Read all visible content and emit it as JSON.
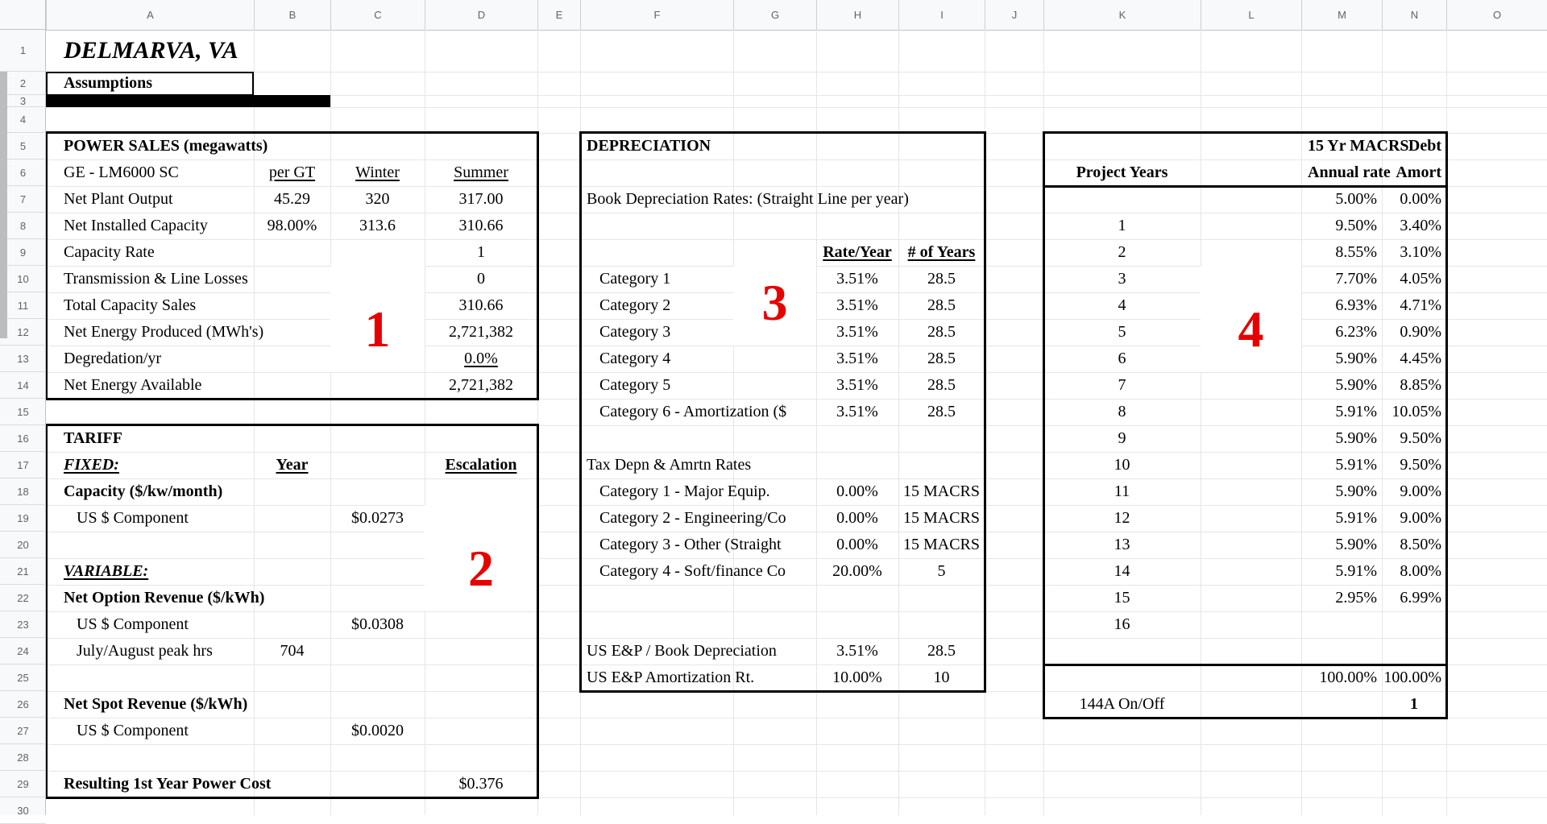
{
  "sheet": {
    "column_headers": [
      "A",
      "B",
      "C",
      "D",
      "E",
      "F",
      "G",
      "H",
      "I",
      "J",
      "K",
      "L",
      "M",
      "N",
      "O"
    ],
    "row_headers": [
      "1",
      "2",
      "3",
      "4",
      "5",
      "6",
      "7",
      "8",
      "9",
      "10",
      "11",
      "12",
      "13",
      "14",
      "15",
      "16",
      "17",
      "18",
      "19",
      "20",
      "21",
      "22",
      "23",
      "24",
      "25",
      "26",
      "27",
      "28",
      "29",
      "30"
    ]
  },
  "colors": {
    "red_label": "#e60000",
    "grid_line": "#e4e6e8",
    "header_bg": "#f8f9fa",
    "header_text": "#5f6368",
    "thick_border": "#000000"
  },
  "cells": [
    {
      "r": 1,
      "c": "A",
      "t": "DELMARVA, VA",
      "s": "bi",
      "fs": 30
    },
    {
      "r": 2,
      "c": "A",
      "t": "Assumptions",
      "s": "b"
    },
    {
      "r": 5,
      "c": "A",
      "t": "POWER SALES (megawatts)",
      "s": "b"
    },
    {
      "r": 6,
      "c": "A",
      "t": "GE - LM6000 SC"
    },
    {
      "r": 6,
      "c": "B",
      "t": "per GT",
      "s": "cu"
    },
    {
      "r": 6,
      "c": "C",
      "t": "Winter",
      "s": "cu"
    },
    {
      "r": 6,
      "c": "D",
      "t": "Summer",
      "s": "cu"
    },
    {
      "r": 7,
      "c": "A",
      "t": "Net Plant  Output"
    },
    {
      "r": 7,
      "c": "B",
      "t": "45.29",
      "s": "c"
    },
    {
      "r": 7,
      "c": "C",
      "t": "320",
      "s": "c"
    },
    {
      "r": 7,
      "c": "D",
      "t": "317.00",
      "s": "c"
    },
    {
      "r": 8,
      "c": "A",
      "t": "Net Installed Capacity"
    },
    {
      "r": 8,
      "c": "B",
      "t": "98.00%",
      "s": "c"
    },
    {
      "r": 8,
      "c": "C",
      "t": "313.6",
      "s": "c"
    },
    {
      "r": 8,
      "c": "D",
      "t": "310.66",
      "s": "c"
    },
    {
      "r": 9,
      "c": "A",
      "t": "Capacity Rate"
    },
    {
      "r": 9,
      "c": "D",
      "t": "1",
      "s": "c"
    },
    {
      "r": 10,
      "c": "A",
      "t": "Transmission & Line Losses"
    },
    {
      "r": 10,
      "c": "D",
      "t": "0",
      "s": "c"
    },
    {
      "r": 11,
      "c": "A",
      "t": "Total Capacity Sales"
    },
    {
      "r": 11,
      "c": "D",
      "t": "310.66",
      "s": "c"
    },
    {
      "r": 12,
      "c": "A",
      "t": "Net Energy Produced (MWh's)"
    },
    {
      "r": 12,
      "c": "D",
      "t": "2,721,382",
      "s": "c"
    },
    {
      "r": 13,
      "c": "A",
      "t": "Degredation/yr"
    },
    {
      "r": 13,
      "c": "D",
      "t": "0.0%",
      "s": "cu"
    },
    {
      "r": 14,
      "c": "A",
      "t": "Net Energy Available"
    },
    {
      "r": 14,
      "c": "D",
      "t": "2,721,382",
      "s": "c"
    },
    {
      "r": 16,
      "c": "A",
      "t": "TARIFF",
      "s": "b"
    },
    {
      "r": 17,
      "c": "A",
      "t": "FIXED:",
      "s": "biu"
    },
    {
      "r": 17,
      "c": "B",
      "t": "Year",
      "s": "cbu"
    },
    {
      "r": 17,
      "c": "D",
      "t": "Escalation",
      "s": "cbu"
    },
    {
      "r": 18,
      "c": "A",
      "t": "Capacity ($/kw/month)",
      "s": "b"
    },
    {
      "r": 19,
      "c": "A",
      "t": "US $ Component",
      "in": 1
    },
    {
      "r": 19,
      "c": "C",
      "t": "$0.0273",
      "s": "c"
    },
    {
      "r": 21,
      "c": "A",
      "t": "VARIABLE:",
      "s": "biu"
    },
    {
      "r": 22,
      "c": "A",
      "t": "Net Option Revenue ($/kWh)",
      "s": "b"
    },
    {
      "r": 23,
      "c": "A",
      "t": "US $ Component",
      "in": 1
    },
    {
      "r": 23,
      "c": "C",
      "t": "$0.0308",
      "s": "c"
    },
    {
      "r": 24,
      "c": "A",
      "t": "July/August peak hrs",
      "in": 1
    },
    {
      "r": 24,
      "c": "B",
      "t": "704",
      "s": "c"
    },
    {
      "r": 26,
      "c": "A",
      "t": "Net Spot Revenue ($/kWh)",
      "s": "b"
    },
    {
      "r": 27,
      "c": "A",
      "t": "US $ Component",
      "in": 1
    },
    {
      "r": 27,
      "c": "C",
      "t": "$0.0020",
      "s": "c"
    },
    {
      "r": 29,
      "c": "A",
      "t": "Resulting 1st Year Power Cost",
      "s": "b"
    },
    {
      "r": 29,
      "c": "D",
      "t": "$0.376",
      "s": "c"
    },
    {
      "r": 5,
      "c": "F",
      "t": "DEPRECIATION",
      "s": "b"
    },
    {
      "r": 7,
      "c": "F",
      "t": "Book Depreciation Rates: (Straight Line per year)"
    },
    {
      "r": 9,
      "c": "H",
      "t": "Rate/Year",
      "s": "cbu"
    },
    {
      "r": 9,
      "c": "I",
      "t": "# of Years",
      "s": "cbu"
    },
    {
      "r": 10,
      "c": "F",
      "t": "Category 1",
      "in": 1
    },
    {
      "r": 10,
      "c": "H",
      "t": "3.51%",
      "s": "c"
    },
    {
      "r": 10,
      "c": "I",
      "t": "28.5",
      "s": "c"
    },
    {
      "r": 11,
      "c": "F",
      "t": "Category 2",
      "in": 1
    },
    {
      "r": 11,
      "c": "H",
      "t": "3.51%",
      "s": "c"
    },
    {
      "r": 11,
      "c": "I",
      "t": "28.5",
      "s": "c"
    },
    {
      "r": 12,
      "c": "F",
      "t": "Category 3",
      "in": 1
    },
    {
      "r": 12,
      "c": "H",
      "t": "3.51%",
      "s": "c"
    },
    {
      "r": 12,
      "c": "I",
      "t": "28.5",
      "s": "c"
    },
    {
      "r": 13,
      "c": "F",
      "t": "Category 4",
      "in": 1
    },
    {
      "r": 13,
      "c": "H",
      "t": "3.51%",
      "s": "c"
    },
    {
      "r": 13,
      "c": "I",
      "t": "28.5",
      "s": "c"
    },
    {
      "r": 14,
      "c": "F",
      "t": "Category 5",
      "in": 1
    },
    {
      "r": 14,
      "c": "H",
      "t": "3.51%",
      "s": "c"
    },
    {
      "r": 14,
      "c": "I",
      "t": "28.5",
      "s": "c"
    },
    {
      "r": 15,
      "c": "F",
      "t": "Category 6 - Amortization ($",
      "in": 1,
      "clip": "H"
    },
    {
      "r": 15,
      "c": "H",
      "t": "3.51%",
      "s": "c"
    },
    {
      "r": 15,
      "c": "I",
      "t": "28.5",
      "s": "c"
    },
    {
      "r": 17,
      "c": "F",
      "t": "Tax Depn & Amrtn Rates"
    },
    {
      "r": 18,
      "c": "F",
      "t": "Category 1 - Major Equip.",
      "in": 1
    },
    {
      "r": 18,
      "c": "H",
      "t": "0.00%",
      "s": "c"
    },
    {
      "r": 18,
      "c": "I",
      "t": "15 MACRS",
      "s": "c"
    },
    {
      "r": 19,
      "c": "F",
      "t": "Category 2 - Engineering/Co",
      "in": 1,
      "clip": "H"
    },
    {
      "r": 19,
      "c": "H",
      "t": "0.00%",
      "s": "c"
    },
    {
      "r": 19,
      "c": "I",
      "t": "15 MACRS",
      "s": "c"
    },
    {
      "r": 20,
      "c": "F",
      "t": "Category 3 - Other (Straight",
      "in": 1,
      "clip": "H"
    },
    {
      "r": 20,
      "c": "H",
      "t": "0.00%",
      "s": "c"
    },
    {
      "r": 20,
      "c": "I",
      "t": "15 MACRS",
      "s": "c"
    },
    {
      "r": 21,
      "c": "F",
      "t": "Category 4 - Soft/finance Co",
      "in": 1,
      "clip": "H"
    },
    {
      "r": 21,
      "c": "H",
      "t": "20.00%",
      "s": "c"
    },
    {
      "r": 21,
      "c": "I",
      "t": "5",
      "s": "c"
    },
    {
      "r": 24,
      "c": "F",
      "t": "US E&P / Book Depreciation"
    },
    {
      "r": 24,
      "c": "H",
      "t": "3.51%",
      "s": "c"
    },
    {
      "r": 24,
      "c": "I",
      "t": "28.5",
      "s": "c"
    },
    {
      "r": 25,
      "c": "F",
      "t": "US E&P Amortization Rt."
    },
    {
      "r": 25,
      "c": "H",
      "t": "10.00%",
      "s": "c"
    },
    {
      "r": 25,
      "c": "I",
      "t": "10",
      "s": "c"
    },
    {
      "r": 5,
      "c": "M",
      "t": "15 Yr MACRS",
      "s": "b",
      "clip": "N"
    },
    {
      "r": 5,
      "c": "N",
      "t": "Debt",
      "s": "br"
    },
    {
      "r": 6,
      "c": "K",
      "t": "Project Years",
      "s": "cb"
    },
    {
      "r": 6,
      "c": "M",
      "t": "Annual rate",
      "s": "b",
      "clip": "N"
    },
    {
      "r": 6,
      "c": "N",
      "t": "Amort",
      "s": "br"
    },
    {
      "r": 7,
      "c": "M",
      "t": "5.00%",
      "s": "r"
    },
    {
      "r": 7,
      "c": "N",
      "t": "0.00%",
      "s": "r"
    },
    {
      "r": 8,
      "c": "K",
      "t": "1",
      "s": "c"
    },
    {
      "r": 8,
      "c": "M",
      "t": "9.50%",
      "s": "r"
    },
    {
      "r": 8,
      "c": "N",
      "t": "3.40%",
      "s": "r"
    },
    {
      "r": 9,
      "c": "K",
      "t": "2",
      "s": "c"
    },
    {
      "r": 9,
      "c": "M",
      "t": "8.55%",
      "s": "r"
    },
    {
      "r": 9,
      "c": "N",
      "t": "3.10%",
      "s": "r"
    },
    {
      "r": 10,
      "c": "K",
      "t": "3",
      "s": "c"
    },
    {
      "r": 10,
      "c": "M",
      "t": "7.70%",
      "s": "r"
    },
    {
      "r": 10,
      "c": "N",
      "t": "4.05%",
      "s": "r"
    },
    {
      "r": 11,
      "c": "K",
      "t": "4",
      "s": "c"
    },
    {
      "r": 11,
      "c": "M",
      "t": "6.93%",
      "s": "r"
    },
    {
      "r": 11,
      "c": "N",
      "t": "4.71%",
      "s": "r"
    },
    {
      "r": 12,
      "c": "K",
      "t": "5",
      "s": "c"
    },
    {
      "r": 12,
      "c": "M",
      "t": "6.23%",
      "s": "r"
    },
    {
      "r": 12,
      "c": "N",
      "t": "0.90%",
      "s": "r"
    },
    {
      "r": 13,
      "c": "K",
      "t": "6",
      "s": "c"
    },
    {
      "r": 13,
      "c": "M",
      "t": "5.90%",
      "s": "r"
    },
    {
      "r": 13,
      "c": "N",
      "t": "4.45%",
      "s": "r"
    },
    {
      "r": 14,
      "c": "K",
      "t": "7",
      "s": "c"
    },
    {
      "r": 14,
      "c": "M",
      "t": "5.90%",
      "s": "r"
    },
    {
      "r": 14,
      "c": "N",
      "t": "8.85%",
      "s": "r"
    },
    {
      "r": 15,
      "c": "K",
      "t": "8",
      "s": "c"
    },
    {
      "r": 15,
      "c": "M",
      "t": "5.91%",
      "s": "r"
    },
    {
      "r": 15,
      "c": "N",
      "t": "10.05%",
      "s": "r"
    },
    {
      "r": 16,
      "c": "K",
      "t": "9",
      "s": "c"
    },
    {
      "r": 16,
      "c": "M",
      "t": "5.90%",
      "s": "r"
    },
    {
      "r": 16,
      "c": "N",
      "t": "9.50%",
      "s": "r"
    },
    {
      "r": 17,
      "c": "K",
      "t": "10",
      "s": "c"
    },
    {
      "r": 17,
      "c": "M",
      "t": "5.91%",
      "s": "r"
    },
    {
      "r": 17,
      "c": "N",
      "t": "9.50%",
      "s": "r"
    },
    {
      "r": 18,
      "c": "K",
      "t": "11",
      "s": "c"
    },
    {
      "r": 18,
      "c": "M",
      "t": "5.90%",
      "s": "r"
    },
    {
      "r": 18,
      "c": "N",
      "t": "9.00%",
      "s": "r"
    },
    {
      "r": 19,
      "c": "K",
      "t": "12",
      "s": "c"
    },
    {
      "r": 19,
      "c": "M",
      "t": "5.91%",
      "s": "r"
    },
    {
      "r": 19,
      "c": "N",
      "t": "9.00%",
      "s": "r"
    },
    {
      "r": 20,
      "c": "K",
      "t": "13",
      "s": "c"
    },
    {
      "r": 20,
      "c": "M",
      "t": "5.90%",
      "s": "r"
    },
    {
      "r": 20,
      "c": "N",
      "t": "8.50%",
      "s": "r"
    },
    {
      "r": 21,
      "c": "K",
      "t": "14",
      "s": "c"
    },
    {
      "r": 21,
      "c": "M",
      "t": "5.91%",
      "s": "r"
    },
    {
      "r": 21,
      "c": "N",
      "t": "8.00%",
      "s": "r"
    },
    {
      "r": 22,
      "c": "K",
      "t": "15",
      "s": "c"
    },
    {
      "r": 22,
      "c": "M",
      "t": "2.95%",
      "s": "r"
    },
    {
      "r": 22,
      "c": "N",
      "t": "6.99%",
      "s": "r"
    },
    {
      "r": 23,
      "c": "K",
      "t": "16",
      "s": "c"
    },
    {
      "r": 25,
      "c": "M",
      "t": "100.00%",
      "s": "r"
    },
    {
      "r": 25,
      "c": "N",
      "t": "100.00%",
      "s": "r"
    },
    {
      "r": 26,
      "c": "K",
      "t": "144A On/Off",
      "s": "c"
    },
    {
      "r": 26,
      "c": "N",
      "t": "1",
      "s": "cb"
    }
  ],
  "section_boxes": [
    {
      "name": "power-sales-box",
      "c1": "A",
      "r1": 5,
      "c2": "D",
      "r2": 14
    },
    {
      "name": "tariff-box",
      "c1": "A",
      "r1": 16,
      "c2": "D",
      "r2": 29
    },
    {
      "name": "depreciation-box",
      "c1": "F",
      "r1": 5,
      "c2": "I",
      "r2": 25
    },
    {
      "name": "macrs-debt-box",
      "c1": "K",
      "r1": 5,
      "c2": "N",
      "r2": 26,
      "hlines_below_rows": [
        6,
        24
      ]
    }
  ],
  "black_bar": {
    "c1": "A",
    "r1": 3,
    "c2": "B",
    "r2": 3
  },
  "assumptions_cell": {
    "c": "A",
    "r": 2
  },
  "red_labels": [
    {
      "text": "1",
      "col": "C",
      "row": 12,
      "patch": {
        "c": "C",
        "r1": 10,
        "r2": 13
      }
    },
    {
      "text": "2",
      "col": "D",
      "row": 21,
      "patch": {
        "c": "D",
        "r1": 19,
        "r2": 22
      }
    },
    {
      "text": "3",
      "col": "G",
      "row": 11,
      "patch": {
        "c": "G",
        "r1": 10,
        "r2": 12
      }
    },
    {
      "text": "4",
      "col": "L",
      "row": 12,
      "patch": {
        "c": "L",
        "r1": 10,
        "r2": 13
      }
    }
  ]
}
